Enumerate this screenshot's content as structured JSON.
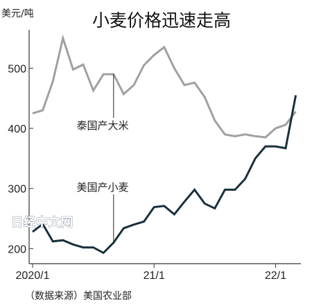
{
  "chart_data": {
    "type": "line",
    "title": "小麦价格迅速走高",
    "ylabel": "美元/吨",
    "ylim": [
      175,
      550
    ],
    "yticks": [
      200,
      300,
      400,
      500
    ],
    "xticks": [
      {
        "label": "2020/1",
        "x": 0
      },
      {
        "label": "21/1",
        "x": 12
      },
      {
        "label": "22/1",
        "x": 24
      }
    ],
    "xlim": [
      -0.5,
      26
    ],
    "series": [
      {
        "name": "泰国产大米",
        "color": "#a0a0a0",
        "x": [
          0,
          1,
          2,
          3,
          4,
          5,
          6,
          7,
          8,
          9,
          10,
          11,
          12,
          13,
          14,
          15,
          16,
          17,
          18,
          19,
          20,
          21,
          22,
          23,
          24,
          25,
          26
        ],
        "values": [
          425,
          430,
          478,
          550,
          498,
          506,
          463,
          490,
          490,
          457,
          472,
          505,
          522,
          535,
          500,
          472,
          476,
          452,
          413,
          390,
          387,
          390,
          387,
          385,
          400,
          406,
          428
        ]
      },
      {
        "name": "美国产小麦",
        "color": "#18303d",
        "x": [
          0,
          1,
          2,
          3,
          4,
          5,
          6,
          7,
          8,
          9,
          10,
          11,
          12,
          13,
          14,
          15,
          16,
          17,
          18,
          19,
          20,
          21,
          22,
          23,
          24,
          25,
          26
        ],
        "values": [
          228,
          241,
          212,
          214,
          207,
          202,
          202,
          193,
          210,
          234,
          240,
          245,
          269,
          271,
          257,
          278,
          298,
          275,
          267,
          298,
          298,
          316,
          350,
          370,
          370,
          367,
          455
        ]
      }
    ],
    "annotations": [
      {
        "text": "泰国产大米",
        "series": 0,
        "x": 8
      },
      {
        "text": "美国产小麦",
        "series": 1,
        "x": 8
      }
    ]
  },
  "source": "（数据来源）美国农业部",
  "watermark": "日经中文网"
}
